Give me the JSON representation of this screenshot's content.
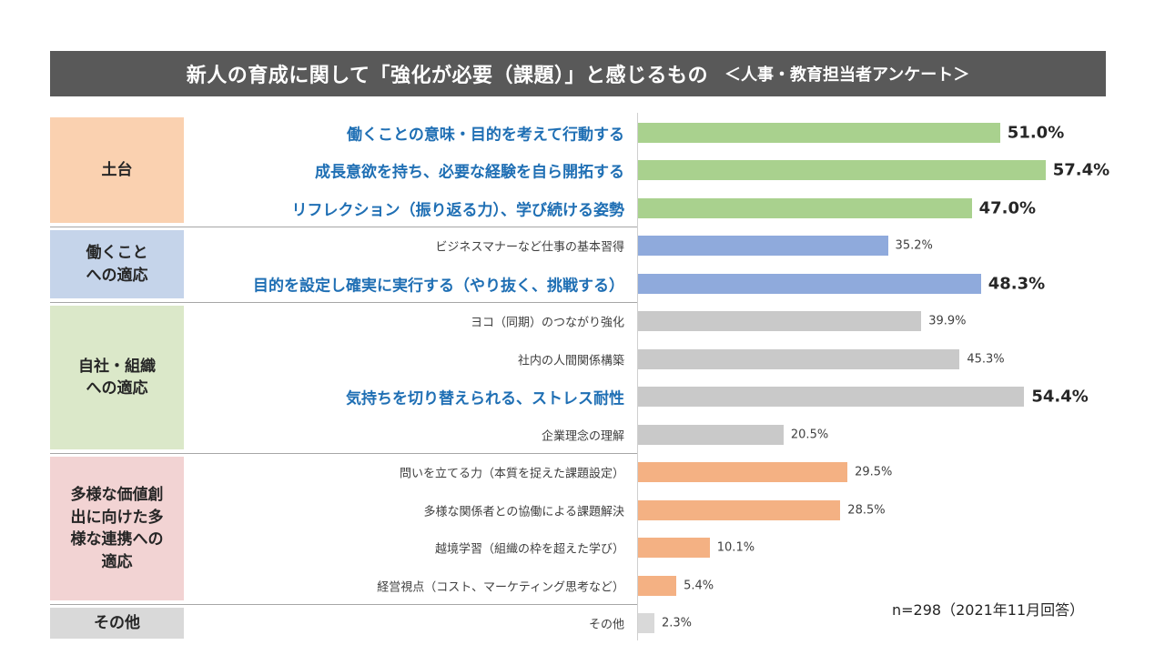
{
  "title": "新人の育成に関して「強化が必要（課題）」と感じるもの",
  "subtitle": "＜人事・教育担当者アンケート＞",
  "note": "n=298（2021年11月回答）",
  "chart_data": {
    "type": "bar",
    "orientation": "horizontal",
    "title": "新人の育成に関して「強化が必要（課題）」と感じるもの",
    "subtitle": "＜人事・教育担当者アンケート＞",
    "xlim": [
      0,
      70
    ],
    "grid": false,
    "legend": "none",
    "groups": [
      {
        "label": "土台",
        "color": "#fad1b0",
        "bar_color": "#a9d18e",
        "items": [
          {
            "label": "働くことの意味・目的を考えて行動する",
            "value": 51.0,
            "value_label": "51.0%",
            "highlight": true
          },
          {
            "label": "成長意欲を持ち、必要な経験を自ら開拓する",
            "value": 57.4,
            "value_label": "57.4%",
            "highlight": true
          },
          {
            "label": "リフレクション（振り返る力）、学び続ける姿勢",
            "value": 47.0,
            "value_label": "47.0%",
            "highlight": true
          }
        ]
      },
      {
        "label": "働くことへの適応",
        "color": "#c5d4ea",
        "bar_color": "#8faadc",
        "items": [
          {
            "label": "ビジネスマナーなど仕事の基本習得",
            "value": 35.2,
            "value_label": "35.2%",
            "highlight": false
          },
          {
            "label": "目的を設定し確実に実行する（やり抜く、挑戦する）",
            "value": 48.3,
            "value_label": "48.3%",
            "highlight": true
          }
        ]
      },
      {
        "label": "自社・組織への適応",
        "color": "#dbe8c9",
        "bar_color": "#c9c9c9",
        "items": [
          {
            "label": "ヨコ（同期）のつながり強化",
            "value": 39.9,
            "value_label": "39.9%",
            "highlight": false
          },
          {
            "label": "社内の人間関係構築",
            "value": 45.3,
            "value_label": "45.3%",
            "highlight": false
          },
          {
            "label": "気持ちを切り替えられる、ストレス耐性",
            "value": 54.4,
            "value_label": "54.4%",
            "highlight": true
          },
          {
            "label": "企業理念の理解",
            "value": 20.5,
            "value_label": "20.5%",
            "highlight": false
          }
        ]
      },
      {
        "label": "多様な価値創出に向けた多様な連携への適応",
        "color": "#f2d3d3",
        "bar_color": "#f4b183",
        "items": [
          {
            "label": "問いを立てる力（本質を捉えた課題設定）",
            "value": 29.5,
            "value_label": "29.5%",
            "highlight": false
          },
          {
            "label": "多様な関係者との協働による課題解決",
            "value": 28.5,
            "value_label": "28.5%",
            "highlight": false
          },
          {
            "label": "越境学習（組織の枠を超えた学び）",
            "value": 10.1,
            "value_label": "10.1%",
            "highlight": false
          },
          {
            "label": "経営視点（コスト、マーケティング思考など）",
            "value": 5.4,
            "value_label": "5.4%",
            "highlight": false
          }
        ]
      },
      {
        "label": "その他",
        "color": "#d9d9d9",
        "bar_color": "#d9d9d9",
        "items": [
          {
            "label": "その他",
            "value": 2.3,
            "value_label": "2.3%",
            "highlight": false
          }
        ]
      }
    ]
  }
}
